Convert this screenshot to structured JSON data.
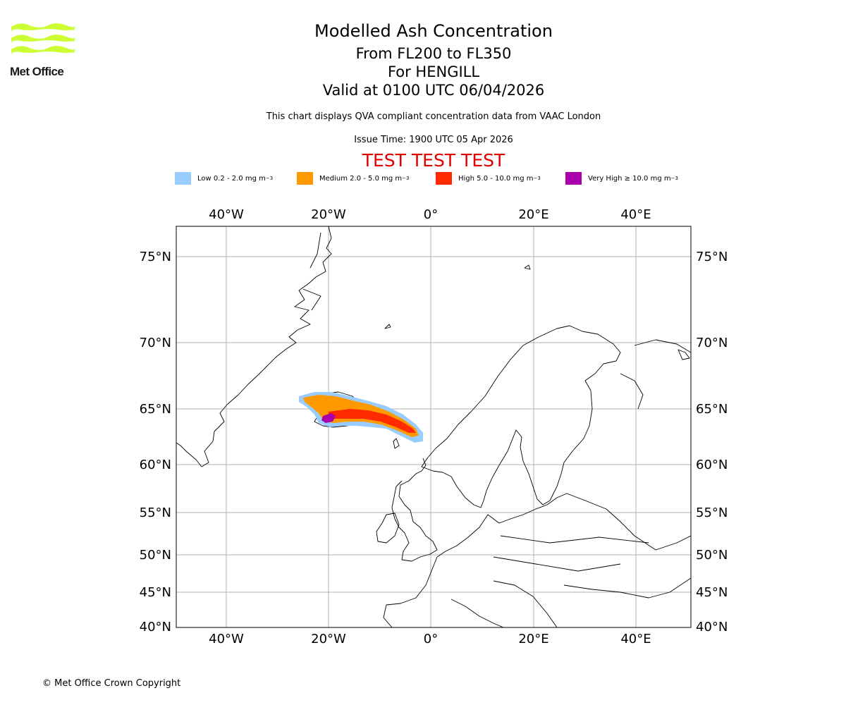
{
  "logo": {
    "text": "Met Office",
    "color": "#ccff33"
  },
  "header": {
    "title": "Modelled Ash Concentration",
    "levels": "From FL200 to FL350",
    "volcano": "For HENGILL",
    "valid": "Valid at 0100 UTC 06/04/2026",
    "note": "This chart displays QVA compliant concentration data from VAAC London",
    "issue": "Issue Time: 1900 UTC 05 Apr 2026",
    "test_banner": "TEST TEST TEST"
  },
  "legend": [
    {
      "label": "Low 0.2 - 2.0 mg m",
      "color": "#99ccff"
    },
    {
      "label": "Medium 2.0 - 5.0 mg m",
      "color": "#ff9900"
    },
    {
      "label": "High 5.0 - 10.0 mg m",
      "color": "#ff2a00"
    },
    {
      "label": "Very High  ≥  10.0 mg m",
      "color": "#aa00aa"
    }
  ],
  "legend_unit_exponent": "−3",
  "map": {
    "lon_labels": [
      "40°W",
      "20°W",
      "0°",
      "20°E",
      "40°E"
    ],
    "lat_labels": [
      "75°N",
      "70°N",
      "65°N",
      "60°N",
      "55°N",
      "50°N",
      "45°N",
      "40°N"
    ]
  },
  "copyright": "© Met Office Crown Copyright"
}
